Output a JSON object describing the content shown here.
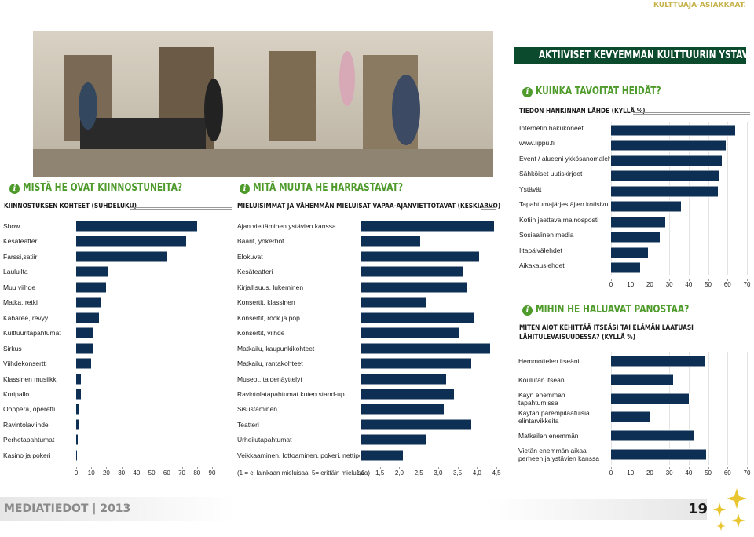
{
  "header": {
    "section": "KULTTUAJA-ASIAKKAAT.",
    "banner": "AKTIIVISET KEVYEMMÄN KULTTUURIN YSTÄVÄT"
  },
  "footer": {
    "publication": "MEDIATIEDOT | 2013",
    "page": "19"
  },
  "chart_data": [
    {
      "type": "bar",
      "orientation": "horizontal",
      "title": "MISTÄ HE OVAT KIINNOSTUNEITA?",
      "subtitle": "KIINNOSTUKSEN KOHTEET (SUHDELUKU)",
      "categories": [
        "Show",
        "Kesäteatteri",
        "Farssi,satiiri",
        "Lauluilta",
        "Muu viihde",
        "Matka, retki",
        "Kabaree, revyy",
        "Kulttuuritapahtumat",
        "Sirkus",
        "Viihdekonsertti",
        "Klassinen musiikki",
        "Koripallo",
        "Ooppera, operetti",
        "Ravintolaviihde",
        "Perhetapahtumat",
        "Kasino ja pokeri"
      ],
      "values": [
        80,
        73,
        60,
        21,
        20,
        16,
        15,
        11,
        11,
        10,
        3,
        3,
        2,
        2,
        1,
        0.3
      ],
      "color": "#0d2f54",
      "xlim": [
        0,
        90
      ],
      "xticks": [
        0,
        10,
        20,
        30,
        40,
        50,
        60,
        70,
        80,
        90
      ],
      "grid": false
    },
    {
      "type": "bar",
      "orientation": "horizontal",
      "title": "MITÄ MUUTA HE HARRASTAVAT?",
      "subtitle": "MIELUISIMMAT JA VÄHEMMÄN MIELUISAT VAPAA-AJANVIETTOTAVAT (KESKIARVO)",
      "note": "(1 = ei lainkaan mieluisaa, 5= erittäin mieluisaa)",
      "categories": [
        "Ajan viettäminen ystävien kanssa",
        "Baarit, yökerhot",
        "Elokuvat",
        "Kesäteatteri",
        "Kirjallisuus, lukeminen",
        "Konsertit, klassinen",
        "Konsertit, rock ja pop",
        "Konsertit, viihde",
        "Matkailu, kaupunkikohteet",
        "Matkailu, rantakohteet",
        "Museot, taidenäyttelyt",
        "Ravintolatapahtumat kuten stand-up",
        "Sisustaminen",
        "Teatteri",
        "Urheilutapahtumat",
        "Veikkaaminen, lottoaminen, pokeri, nettipelit"
      ],
      "values": [
        4.44,
        2.54,
        4.06,
        3.65,
        3.75,
        2.7,
        3.94,
        3.55,
        4.34,
        3.85,
        3.2,
        3.4,
        3.15,
        3.85,
        2.7,
        2.1
      ],
      "color": "#0d2f54",
      "xlim": [
        1,
        4.5
      ],
      "xticks": [
        {
          "value": 1,
          "label": "1,0"
        },
        {
          "value": 1.5,
          "label": "1,5"
        },
        {
          "value": 2,
          "label": "2,0"
        },
        {
          "value": 2.5,
          "label": "2,5"
        },
        {
          "value": 3,
          "label": "3,0"
        },
        {
          "value": 3.5,
          "label": "3,5"
        },
        {
          "value": 4,
          "label": "4,0"
        },
        {
          "value": 4.5,
          "label": "4,5"
        }
      ],
      "grid": false
    },
    {
      "type": "bar",
      "orientation": "horizontal",
      "title": "KUINKA TAVOITAT HEIDÄT?",
      "subtitle": "TIEDON HANKINNAN LÄHDE (KYLLÄ %)",
      "categories": [
        "Internetin hakukoneet",
        "www.lippu.fi",
        "Event / alueeni ykkösanomalehti",
        "Sähköiset uutiskirjeet",
        "Ystävät",
        "Tapahtumajärjestäjien kotisivut",
        "Kotiin jaettava mainosposti",
        "Sosiaalinen media",
        "Iltapäivälehdet",
        "Aikakauslehdet"
      ],
      "values": [
        64,
        59,
        57,
        56,
        55,
        36,
        28,
        25,
        19,
        15
      ],
      "color": "#0d2f54",
      "xlim": [
        0,
        70
      ],
      "xticks": [
        0,
        10,
        20,
        30,
        40,
        50,
        60,
        70
      ],
      "grid": true
    },
    {
      "type": "bar",
      "orientation": "horizontal",
      "title": "MIHIN HE HALUAVAT PANOSTAA?",
      "subtitle": "MITEN AIOT KEHITTÄÄ ITSEÄSI TAI ELÄMÄN LAATUASI LÄHITULEVAISUUDESSA? (KYLLÄ %)",
      "categories": [
        "Hemmottelen itseäni",
        "Koulutan itseäni",
        "Käyn enemmän tapahtumissa",
        "Käytän parempilaatuisia elintarvikkeita",
        "Matkailen enemmän",
        "Vietän enemmän aikaa perheen ja ystävien kanssa"
      ],
      "values": [
        48,
        32,
        40,
        20,
        43,
        49
      ],
      "color": "#0d2f54",
      "xlim": [
        0,
        70
      ],
      "xticks": [
        0,
        10,
        20,
        30,
        40,
        50,
        60,
        70
      ],
      "grid": true
    }
  ]
}
